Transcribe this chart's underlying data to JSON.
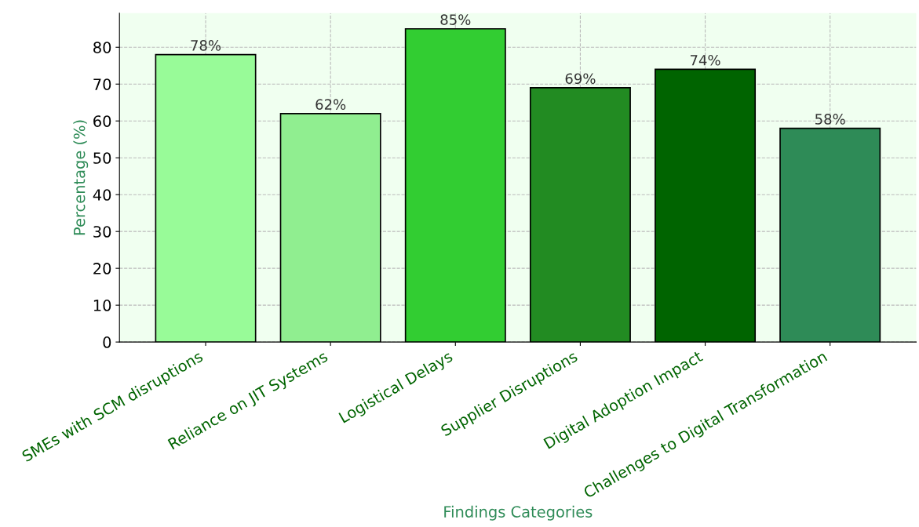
{
  "chart_data": {
    "type": "bar",
    "xlabel": "Findings Categories",
    "ylabel": "Percentage (%)",
    "categories": [
      "SMEs with SCM disruptions",
      "Reliance on JIT Systems",
      "Logistical Delays",
      "Supplier Disruptions",
      "Digital Adoption Impact",
      "Challenges to Digital Transformation"
    ],
    "values": [
      78,
      62,
      85,
      69,
      74,
      58
    ],
    "colors": [
      "#98fb98",
      "#90ee90",
      "#32cd32",
      "#228b22",
      "#006400",
      "#2e8b57"
    ],
    "value_labels": [
      "78%",
      "62%",
      "85%",
      "69%",
      "74%",
      "58%"
    ],
    "ylim": [
      0,
      89.25
    ],
    "yticks": [
      0,
      10,
      20,
      30,
      40,
      50,
      60,
      70,
      80
    ],
    "grid": true
  }
}
